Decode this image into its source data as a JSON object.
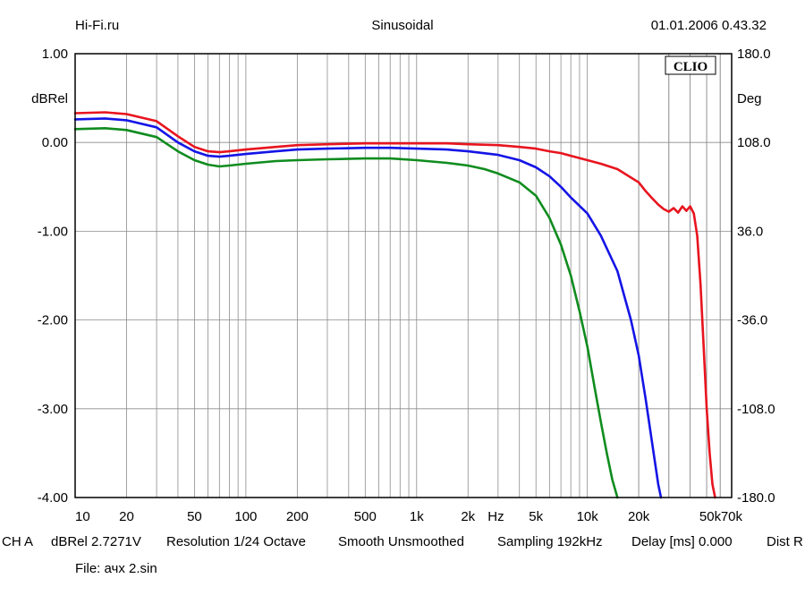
{
  "header": {
    "left": "Hi-Fi.ru",
    "center": "Sinusoidal",
    "right": "01.01.2006 0.43.32"
  },
  "status": {
    "items": [
      "CH A",
      "dBRel 2.7271V",
      "Resolution 1/24 Octave",
      "Smooth Unsmoothed",
      "Sampling 192kHz",
      "Delay [ms] 0.000",
      "Dist R"
    ],
    "file": "File: ачх 2.sin"
  },
  "chart_data": {
    "type": "line",
    "logo": "CLIO",
    "x_scale": "log",
    "xlim": [
      10,
      70000
    ],
    "ylim": [
      -4,
      1
    ],
    "y2lim": [
      -180,
      180
    ],
    "ylabel": "dBRel",
    "y2label": "Deg",
    "xunit": "Hz",
    "grid": true,
    "x_ticks": [
      {
        "v": 10,
        "label": "10"
      },
      {
        "v": 20,
        "label": "20"
      },
      {
        "v": 50,
        "label": "50"
      },
      {
        "v": 100,
        "label": "100"
      },
      {
        "v": 200,
        "label": "200"
      },
      {
        "v": 500,
        "label": "500"
      },
      {
        "v": 1000,
        "label": "1k"
      },
      {
        "v": 2000,
        "label": "2k"
      },
      {
        "v": 5000,
        "label": "5k"
      },
      {
        "v": 10000,
        "label": "10k"
      },
      {
        "v": 20000,
        "label": "20k"
      },
      {
        "v": 50000,
        "label": "50k"
      },
      {
        "v": 70000,
        "label": "70k"
      }
    ],
    "y_ticks": [
      {
        "v": 1,
        "label": "1.00"
      },
      {
        "v": 0,
        "label": "0.00"
      },
      {
        "v": -1,
        "label": "-1.00"
      },
      {
        "v": -2,
        "label": "-2.00"
      },
      {
        "v": -3,
        "label": "-3.00"
      },
      {
        "v": -4,
        "label": "-4.00"
      }
    ],
    "y2_ticks": [
      {
        "v": 180,
        "label": "180.0"
      },
      {
        "v": 108,
        "label": "108.0"
      },
      {
        "v": 36,
        "label": "36.0"
      },
      {
        "v": -36,
        "label": "-36.0"
      },
      {
        "v": -108,
        "label": "-108.0"
      },
      {
        "v": -180,
        "label": "-180.0"
      }
    ],
    "series": [
      {
        "color": "#e8141e",
        "x": [
          10,
          15,
          20,
          30,
          40,
          50,
          60,
          70,
          80,
          100,
          150,
          200,
          300,
          500,
          700,
          1000,
          1500,
          2000,
          3000,
          4000,
          5000,
          6000,
          7000,
          8000,
          10000,
          12000,
          15000,
          20000,
          22000,
          24000,
          26000,
          28000,
          30000,
          32000,
          34000,
          36000,
          38000,
          40000,
          42000,
          44000,
          46000,
          48000,
          50000,
          52000,
          54000,
          56000
        ],
        "y": [
          0.33,
          0.34,
          0.32,
          0.24,
          0.07,
          -0.05,
          -0.1,
          -0.11,
          -0.1,
          -0.08,
          -0.05,
          -0.03,
          -0.02,
          -0.01,
          -0.01,
          -0.01,
          -0.01,
          -0.02,
          -0.03,
          -0.05,
          -0.07,
          -0.1,
          -0.12,
          -0.15,
          -0.2,
          -0.24,
          -0.3,
          -0.45,
          -0.55,
          -0.63,
          -0.7,
          -0.75,
          -0.78,
          -0.74,
          -0.79,
          -0.72,
          -0.77,
          -0.72,
          -0.8,
          -1.05,
          -1.6,
          -2.3,
          -3.0,
          -3.5,
          -3.85,
          -4.0
        ]
      },
      {
        "color": "#1414e6",
        "x": [
          10,
          15,
          20,
          30,
          40,
          50,
          60,
          70,
          80,
          100,
          150,
          200,
          300,
          500,
          700,
          1000,
          1500,
          2000,
          3000,
          4000,
          5000,
          6000,
          7000,
          8000,
          10000,
          12000,
          15000,
          18000,
          20000,
          22000,
          24000,
          26000,
          27000
        ],
        "y": [
          0.26,
          0.27,
          0.25,
          0.17,
          0.0,
          -0.1,
          -0.15,
          -0.16,
          -0.15,
          -0.13,
          -0.1,
          -0.08,
          -0.07,
          -0.06,
          -0.06,
          -0.07,
          -0.08,
          -0.1,
          -0.14,
          -0.2,
          -0.28,
          -0.38,
          -0.5,
          -0.62,
          -0.8,
          -1.05,
          -1.45,
          -2.0,
          -2.4,
          -2.9,
          -3.4,
          -3.85,
          -4.0
        ]
      },
      {
        "color": "#0f8c1e",
        "x": [
          10,
          15,
          20,
          30,
          40,
          50,
          60,
          70,
          80,
          100,
          150,
          200,
          300,
          500,
          700,
          1000,
          1500,
          2000,
          2500,
          3000,
          4000,
          5000,
          6000,
          7000,
          8000,
          9000,
          10000,
          11000,
          12000,
          13000,
          14000,
          15000
        ],
        "y": [
          0.15,
          0.16,
          0.14,
          0.06,
          -0.1,
          -0.2,
          -0.25,
          -0.27,
          -0.26,
          -0.24,
          -0.21,
          -0.2,
          -0.19,
          -0.18,
          -0.18,
          -0.2,
          -0.23,
          -0.26,
          -0.3,
          -0.35,
          -0.45,
          -0.6,
          -0.85,
          -1.15,
          -1.5,
          -1.9,
          -2.3,
          -2.75,
          -3.15,
          -3.5,
          -3.8,
          -4.0
        ]
      }
    ]
  }
}
